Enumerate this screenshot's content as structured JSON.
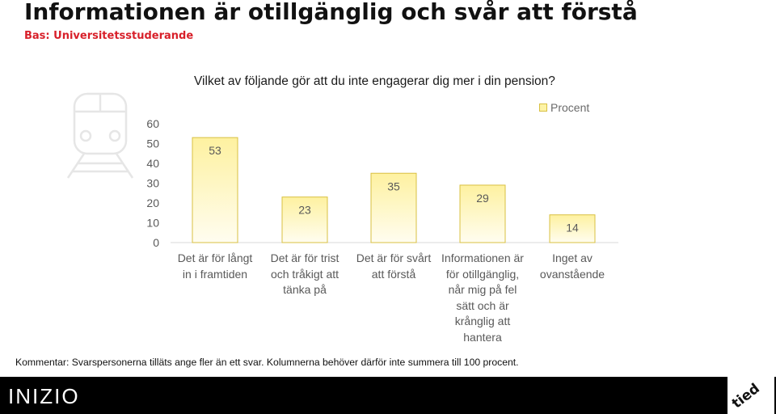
{
  "header": {
    "title": "Informationen är otillgänglig och svår att förstå",
    "subtitle": "Bas: Universitetsstuderande"
  },
  "chart_data": {
    "type": "bar",
    "title": "Vilket av följande gör att du inte engagerar dig mer i din pension?",
    "categories": [
      "Det är för långt in i framtiden",
      "Det är för trist och tråkigt att tänka på",
      "Det är för svårt att förstå",
      "Informationen är för otillgänglig, når mig på fel sätt och är krånglig att hantera",
      "Inget av ovanstående"
    ],
    "category_lines": [
      [
        "Det är för långt",
        "in i framtiden"
      ],
      [
        "Det är för trist",
        "och tråkigt att",
        "tänka på"
      ],
      [
        "Det är för svårt",
        "att förstå"
      ],
      [
        "Informationen är",
        "för otillgänglig,",
        "når mig på fel",
        "sätt och är",
        "krånglig att",
        "hantera"
      ],
      [
        "Inget av",
        "ovanstående"
      ]
    ],
    "series": [
      {
        "name": "Procent",
        "values": [
          53,
          23,
          35,
          29,
          14
        ]
      }
    ],
    "yticks": [
      0,
      10,
      20,
      30,
      40,
      50,
      60
    ],
    "ylim": [
      0,
      60
    ],
    "grid": false,
    "legend_position": "top-right",
    "colors": {
      "bar_top": "#fef1a0",
      "bar_bottom": "#fffdf0",
      "bar_border": "#d8c042"
    }
  },
  "comment": "Kommentar: Svarspersonerna tilläts ange fler än ett svar. Kolumnerna behöver därför inte summera till 100 procent.",
  "footer": {
    "logo_left": "INIZIO",
    "logo_right": "tied"
  }
}
